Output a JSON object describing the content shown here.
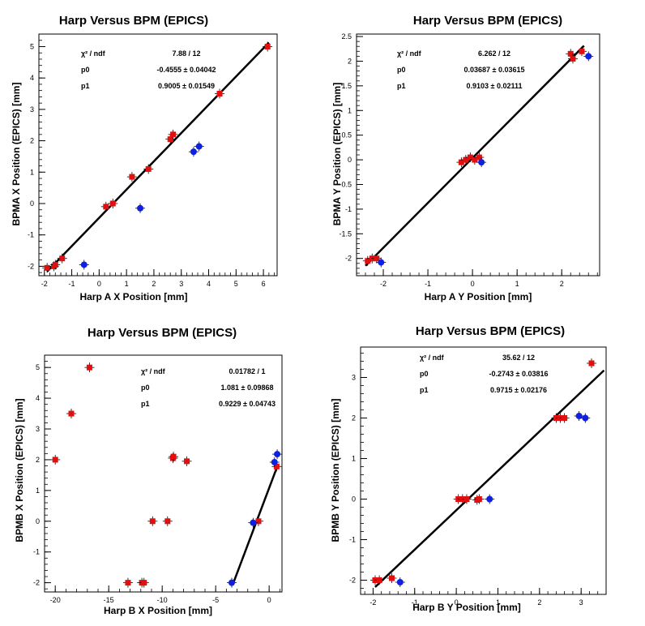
{
  "colors": {
    "red_series": "#e01010",
    "blue_series": "#1020e0",
    "fit_line": "#000000",
    "frame": "#000000"
  },
  "chart_data": [
    {
      "type": "scatter",
      "title": "Harp Versus BPM (EPICS)",
      "xlabel": "Harp A X Position [mm]",
      "ylabel": "BPMA X Position (EPICS) [mm]",
      "xlim": [
        -2.2,
        6.5
      ],
      "ylim": [
        -2.3,
        5.4
      ],
      "xticks": [
        -2,
        -1,
        0,
        1,
        2,
        3,
        4,
        5,
        6
      ],
      "yticks": [
        -2,
        -1,
        0,
        1,
        2,
        3,
        4,
        5
      ],
      "xtick_labels": [
        "-2",
        "-1",
        "0",
        "1",
        "2",
        "3",
        "4",
        "5",
        "6"
      ],
      "ytick_labels": [
        "-2",
        "-1",
        "0",
        "1",
        "2",
        "3",
        "4",
        "5"
      ],
      "stats": [
        {
          "label": "χ² / ndf",
          "value": "7.88 / 12"
        },
        {
          "label": "p0",
          "value": "-0.4555 ± 0.04042"
        },
        {
          "label": "p1",
          "value": "0.9005 ± 0.01549"
        }
      ],
      "fit": {
        "p0": -0.4555,
        "p1": 0.9005,
        "x_range": [
          -1.9,
          6.2
        ]
      },
      "series": [
        {
          "color": "red",
          "marker": "square",
          "x": [
            -1.9,
            -1.65,
            -1.6,
            -1.35,
            0.25,
            0.5,
            1.2,
            1.8,
            2.6,
            2.7,
            4.4,
            6.15
          ],
          "y": [
            -2.05,
            -2.0,
            -1.95,
            -1.75,
            -0.1,
            0.0,
            0.85,
            1.1,
            2.05,
            2.2,
            3.5,
            5.0
          ]
        },
        {
          "color": "blue",
          "marker": "circle",
          "x": [
            -0.55,
            1.5,
            3.45,
            3.65
          ],
          "y": [
            -1.95,
            -0.15,
            1.65,
            1.82
          ]
        }
      ]
    },
    {
      "type": "scatter",
      "title": "Harp Versus BPM (EPICS)",
      "xlabel": "Harp A Y Position [mm]",
      "ylabel": "BPMA Y Position (EPICS) [mm]",
      "xlim": [
        -2.6,
        2.85
      ],
      "ylim": [
        -2.35,
        2.55
      ],
      "xticks": [
        -2,
        -1,
        0,
        1,
        2
      ],
      "yticks": [
        -2,
        -1.5,
        -1,
        -0.5,
        0,
        0.5,
        1,
        1.5,
        2,
        2.5
      ],
      "xtick_labels": [
        "-2",
        "-1",
        "0",
        "1",
        "2"
      ],
      "ytick_labels": [
        "-2",
        "-1.5",
        "-1",
        "-0.5",
        "0",
        "0.5",
        "1",
        "1.5",
        "2",
        "2.5"
      ],
      "stats": [
        {
          "label": "χ² / ndf",
          "value": "6.262 / 12"
        },
        {
          "label": "p0",
          "value": "0.03687 ± 0.03615"
        },
        {
          "label": "p1",
          "value": "0.9103 ± 0.02111"
        }
      ],
      "fit": {
        "p0": 0.03687,
        "p1": 0.9103,
        "x_range": [
          -2.4,
          2.5
        ]
      },
      "series": [
        {
          "color": "red",
          "marker": "square",
          "x": [
            -2.35,
            -2.25,
            -2.15,
            -0.25,
            -0.15,
            -0.05,
            0.05,
            0.15,
            2.2,
            2.25,
            2.45
          ],
          "y": [
            -2.05,
            -2.0,
            -2.0,
            -0.05,
            0.0,
            0.05,
            0.0,
            0.05,
            2.15,
            2.05,
            2.2
          ]
        },
        {
          "color": "blue",
          "marker": "circle",
          "x": [
            -2.05,
            0.2,
            2.6
          ],
          "y": [
            -2.08,
            -0.05,
            2.1
          ]
        }
      ]
    },
    {
      "type": "scatter",
      "title": "Harp Versus BPM (EPICS)",
      "xlabel": "Harp B X Position [mm]",
      "ylabel": "BPMB X Position (EPICS) [mm]",
      "xlim": [
        -21.0,
        1.2
      ],
      "ylim": [
        -2.3,
        5.4
      ],
      "xticks": [
        -20,
        -15,
        -10,
        -5,
        0
      ],
      "yticks": [
        -2,
        -1,
        0,
        1,
        2,
        3,
        4,
        5
      ],
      "xtick_labels": [
        "-20",
        "-15",
        "-10",
        "-5",
        "0"
      ],
      "ytick_labels": [
        "-2",
        "-1",
        "0",
        "1",
        "2",
        "3",
        "4",
        "5"
      ],
      "stats": [
        {
          "label": "χ² / ndf",
          "value": "0.01782 / 1"
        },
        {
          "label": "p0",
          "value": "1.081 ± 0.09868"
        },
        {
          "label": "p1",
          "value": "0.9229 ± 0.04743"
        }
      ],
      "fit": {
        "p0": 1.081,
        "p1": 0.9229,
        "x_range": [
          -3.4,
          0.8
        ]
      },
      "series": [
        {
          "color": "red",
          "marker": "square",
          "x": [
            -20.0,
            -18.5,
            -16.8,
            -13.2,
            -11.9,
            -11.7,
            -10.9,
            -9.5,
            -9.0,
            -8.95,
            -7.7,
            -1.0,
            0.7
          ],
          "y": [
            2.0,
            3.5,
            5.0,
            -2.0,
            -2.0,
            -2.0,
            0.0,
            0.0,
            2.05,
            2.1,
            1.95,
            0.0,
            1.78
          ]
        },
        {
          "color": "blue",
          "marker": "circle",
          "x": [
            -3.5,
            -1.5,
            0.5,
            0.75
          ],
          "y": [
            -2.0,
            -0.05,
            1.92,
            2.18
          ]
        }
      ]
    },
    {
      "type": "scatter",
      "title": "Harp Versus BPM (EPICS)",
      "xlabel": "Harp B Y Position [mm]",
      "ylabel": "BPMB Y Position (EPICS) [mm]",
      "xlim": [
        -2.3,
        3.6
      ],
      "ylim": [
        -2.35,
        3.75
      ],
      "xticks": [
        -2,
        -1,
        0,
        1,
        2,
        3
      ],
      "yticks": [
        -2,
        -1,
        0,
        1,
        2,
        3
      ],
      "xtick_labels": [
        "-2",
        "-1",
        "0",
        "1",
        "2",
        "3"
      ],
      "ytick_labels": [
        "-2",
        "-1",
        "0",
        "1",
        "2",
        "3"
      ],
      "stats": [
        {
          "label": "χ² / ndf",
          "value": "35.62 / 12"
        },
        {
          "label": "p0",
          "value": "-0.2743 ± 0.03816"
        },
        {
          "label": "p1",
          "value": "0.9715 ± 0.02176"
        }
      ],
      "fit": {
        "p0": -0.2743,
        "p1": 0.9715,
        "x_range": [
          -1.95,
          3.55
        ]
      },
      "series": [
        {
          "color": "red",
          "marker": "square",
          "x": [
            -1.95,
            -1.85,
            -1.55,
            0.05,
            0.15,
            0.25,
            0.5,
            0.55,
            2.4,
            2.5,
            2.6,
            3.25
          ],
          "y": [
            -2.0,
            -2.0,
            -1.95,
            0.0,
            0.0,
            0.0,
            -0.02,
            0.0,
            2.0,
            2.0,
            2.0,
            3.35
          ]
        },
        {
          "color": "blue",
          "marker": "circle",
          "x": [
            -1.35,
            0.8,
            2.95,
            3.1
          ],
          "y": [
            -2.05,
            0.0,
            2.05,
            2.0
          ]
        }
      ]
    }
  ]
}
